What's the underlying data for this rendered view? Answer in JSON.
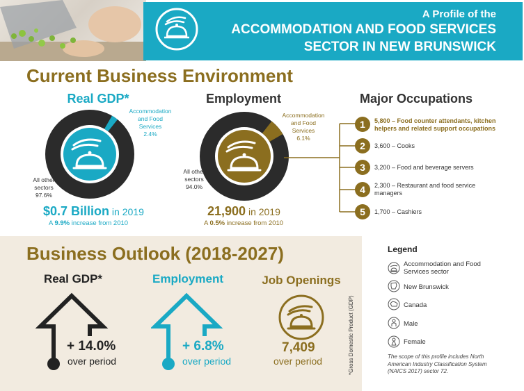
{
  "header": {
    "line1": "A Profile of the",
    "line2": "ACCOMMODATION AND FOOD SERVICES",
    "line3": "SECTOR IN NEW BRUNSWICK"
  },
  "current": {
    "title": "Current Business Environment",
    "gdp": {
      "label": "Real GDP*",
      "sector_label_1": "Accommodation",
      "sector_label_2": "and Food",
      "sector_label_3": "Services",
      "sector_pct": "2.4%",
      "other_label_1": "All other",
      "other_label_2": "sectors",
      "other_pct": "97.6%",
      "value": "$0.7 Billion",
      "year": " in 2019",
      "increase_prefix": "A ",
      "increase_value": "9.9%",
      "increase_suffix": " increase from 2010"
    },
    "employment": {
      "label": "Employment",
      "sector_label_1": "Accommodation",
      "sector_label_2": "and Food",
      "sector_label_3": "Services",
      "sector_pct": "6.1%",
      "other_label_1": "All other",
      "other_label_2": "sectors",
      "other_pct": "94.0%",
      "value": "21,900",
      "year": " in 2019",
      "increase_prefix": "A ",
      "increase_value": "0.5%",
      "increase_suffix": " increase from 2010"
    },
    "occupations": {
      "title": "Major Occupations",
      "items": [
        {
          "num": "1",
          "line1": "5,800 – Food counter attendants, kitchen",
          "line2": "helpers and related support occupations"
        },
        {
          "num": "2",
          "line1": "3,600 – Cooks",
          "line2": ""
        },
        {
          "num": "3",
          "line1": "3,200 – Food and beverage servers",
          "line2": ""
        },
        {
          "num": "4",
          "line1": "2,300 – Restaurant and food service",
          "line2": "managers"
        },
        {
          "num": "5",
          "line1": "1,700 – Cashiers",
          "line2": ""
        }
      ]
    }
  },
  "outlook": {
    "title": "Business Outlook (2018-2027)",
    "gdp": {
      "label": "Real GDP*",
      "value": "+ 14.0%",
      "period": "over period"
    },
    "employment": {
      "label": "Employment",
      "value": "+ 6.8%",
      "period": "over period"
    },
    "jobs": {
      "label": "Job Openings",
      "value": "7,409",
      "period": "over period"
    },
    "footnote": "*Gross Domestic Product (GDP)"
  },
  "legend": {
    "title": "Legend",
    "items": [
      {
        "icon": "cloche-icon",
        "line1": "Accommodation and Food",
        "line2": "Services sector"
      },
      {
        "icon": "new-brunswick-map-icon",
        "line1": "New Brunswick",
        "line2": ""
      },
      {
        "icon": "canada-map-icon",
        "line1": "Canada",
        "line2": ""
      },
      {
        "icon": "male-icon",
        "line1": "Male",
        "line2": ""
      },
      {
        "icon": "female-icon",
        "line1": "Female",
        "line2": ""
      }
    ],
    "scope_1": "The scope of this profile includes North",
    "scope_2": "American Industry Classification System",
    "scope_3": "(NAICS 2017) sector 72."
  },
  "colors": {
    "teal": "#1aa9c4",
    "gold": "#8b6e1f",
    "dark": "#2b2b2b",
    "outlook_bg": "#f2ebe0"
  }
}
